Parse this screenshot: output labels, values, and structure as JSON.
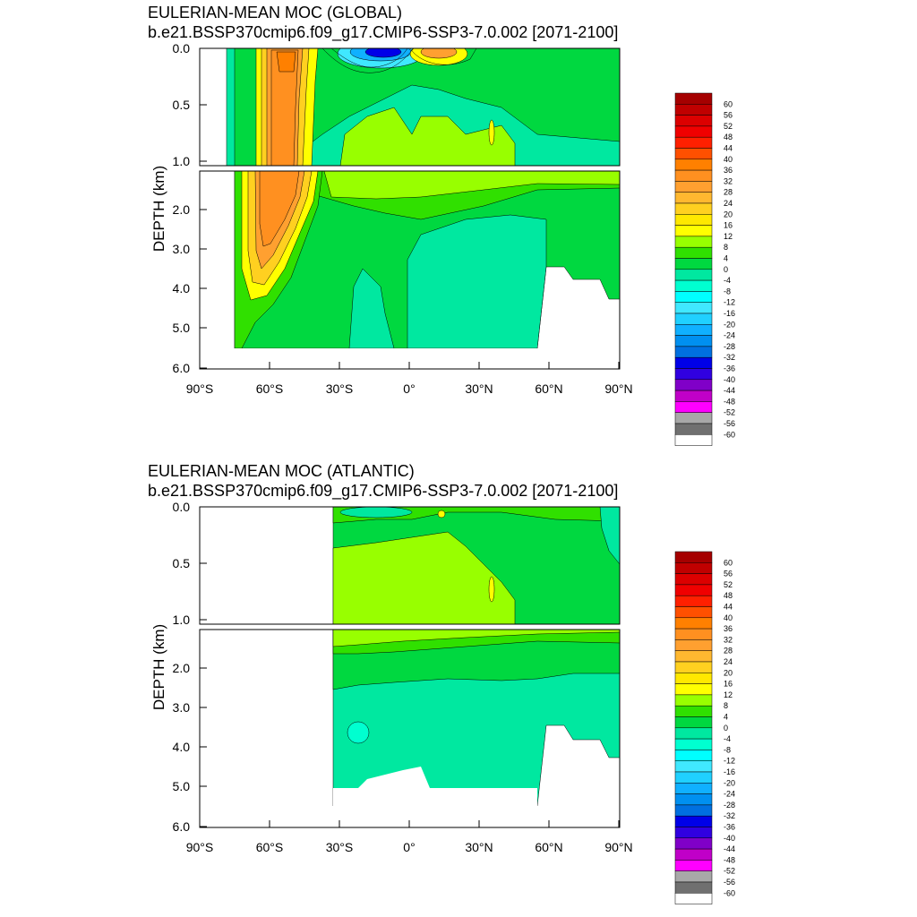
{
  "chart_data": [
    {
      "type": "heatmap",
      "title": "EULERIAN-MEAN MOC (GLOBAL)",
      "subtitle": "b.e21.BSSP370cmip6.f09_g17.CMIP6-SSP3-7.0.002 [2071-2100]",
      "ylabel": "DEPTH (km)",
      "x_ticks": [
        "90°S",
        "60°S",
        "30°S",
        "0°",
        "30°N",
        "60°N",
        "90°N"
      ],
      "y_ticks_upper": [
        "0.0",
        "0.5",
        "1.0"
      ],
      "y_ticks_lower": [
        "2.0",
        "3.0",
        "4.0",
        "5.0",
        "6.0"
      ],
      "xlim": [
        -90,
        90
      ],
      "ylim": [
        6.0,
        0.0
      ],
      "colorbar_levels": [
        "60",
        "56",
        "52",
        "48",
        "44",
        "40",
        "36",
        "32",
        "28",
        "24",
        "20",
        "16",
        "12",
        "8",
        "4",
        "0",
        "-4",
        "-8",
        "-12",
        "-16",
        "-20",
        "-24",
        "-28",
        "-32",
        "-36",
        "-40",
        "-44",
        "-48",
        "-52",
        "-56",
        "-60"
      ]
    },
    {
      "type": "heatmap",
      "title": "EULERIAN-MEAN MOC (ATLANTIC)",
      "subtitle": "b.e21.BSSP370cmip6.f09_g17.CMIP6-SSP3-7.0.002 [2071-2100]",
      "ylabel": "DEPTH (km)",
      "x_ticks": [
        "90°S",
        "60°S",
        "30°S",
        "0°",
        "30°N",
        "60°N",
        "90°N"
      ],
      "y_ticks_upper": [
        "0.0",
        "0.5",
        "1.0"
      ],
      "y_ticks_lower": [
        "2.0",
        "3.0",
        "4.0",
        "5.0",
        "6.0"
      ],
      "xlim": [
        -90,
        90
      ],
      "ylim": [
        6.0,
        0.0
      ],
      "colorbar_levels": [
        "60",
        "56",
        "52",
        "48",
        "44",
        "40",
        "36",
        "32",
        "28",
        "24",
        "20",
        "16",
        "12",
        "8",
        "4",
        "0",
        "-4",
        "-8",
        "-12",
        "-16",
        "-20",
        "-24",
        "-28",
        "-32",
        "-36",
        "-40",
        "-44",
        "-48",
        "-52",
        "-56",
        "-60"
      ]
    }
  ],
  "colors": {
    "palette": [
      "#a50000",
      "#c00000",
      "#dc0000",
      "#f00000",
      "#ff2000",
      "#ff5000",
      "#ff8000",
      "#ff9020",
      "#ffa030",
      "#ffb830",
      "#ffd020",
      "#ffe800",
      "#ffff00",
      "#98ff00",
      "#30e000",
      "#00d840",
      "#00e8a0",
      "#00ffd0",
      "#00ffff",
      "#40e8ff",
      "#20d0ff",
      "#10b0ff",
      "#0090f0",
      "#0070e0",
      "#0000e8",
      "#3000e0",
      "#8000c8",
      "#c000c8",
      "#ff00ff",
      "#a8a8a8",
      "#707070",
      "#ffffff"
    ]
  }
}
